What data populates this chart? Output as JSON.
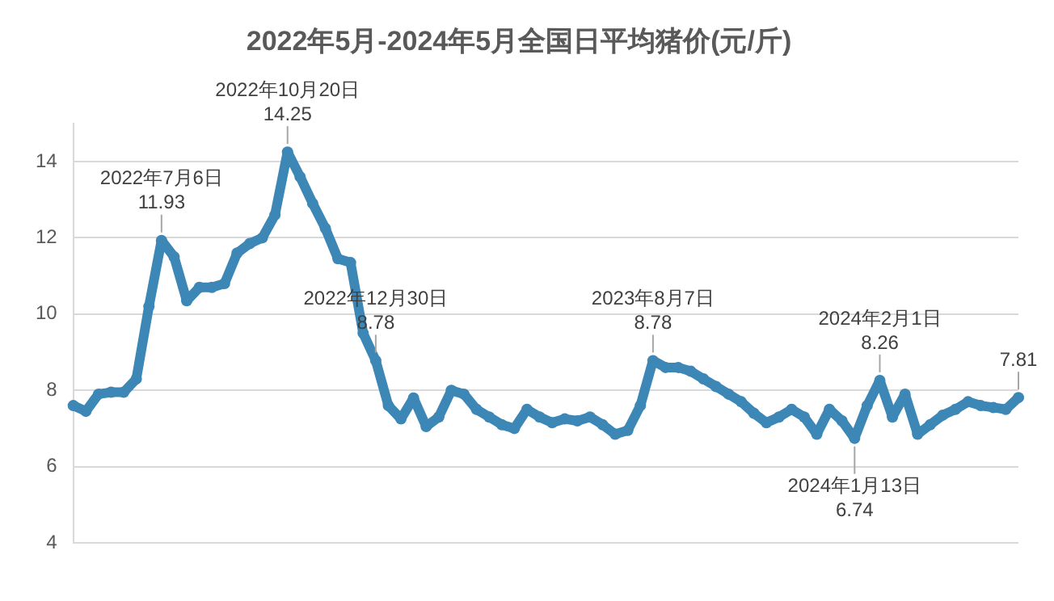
{
  "chart_data": {
    "type": "line",
    "title": "2022年5月-2024年5月全国日平均猪价(元/斤)",
    "categories": [
      null,
      null,
      null,
      null,
      null,
      null,
      null,
      null,
      null,
      null,
      null,
      null,
      null,
      null,
      null,
      null,
      null,
      null,
      null,
      null,
      null,
      null,
      null,
      null,
      null,
      null,
      null,
      null,
      null,
      null,
      null,
      null,
      null,
      null,
      null,
      null,
      null,
      null,
      null,
      null,
      null,
      null,
      null,
      null,
      null,
      null,
      null,
      null,
      null,
      null,
      null,
      null,
      null,
      null,
      null,
      null,
      null,
      null,
      null,
      null,
      null,
      null,
      null,
      null,
      null,
      null,
      null,
      null,
      null,
      null,
      null,
      null,
      null,
      null,
      null,
      null
    ],
    "values": [
      7.6,
      7.45,
      7.9,
      7.95,
      7.95,
      8.3,
      10.2,
      11.93,
      11.5,
      10.35,
      10.7,
      10.7,
      10.8,
      11.6,
      11.85,
      12.0,
      12.6,
      14.25,
      13.6,
      12.9,
      12.25,
      11.45,
      11.35,
      9.5,
      8.78,
      7.6,
      7.25,
      7.8,
      7.05,
      7.3,
      8.0,
      7.9,
      7.5,
      7.3,
      7.1,
      7.0,
      7.5,
      7.3,
      7.15,
      7.25,
      7.2,
      7.3,
      7.1,
      6.85,
      6.95,
      7.6,
      8.78,
      8.6,
      8.6,
      8.5,
      8.3,
      8.1,
      7.9,
      7.7,
      7.4,
      7.15,
      7.3,
      7.5,
      7.3,
      6.85,
      7.5,
      7.2,
      6.74,
      7.6,
      8.26,
      7.3,
      7.9,
      6.85,
      7.1,
      7.35,
      7.5,
      7.7,
      7.6,
      7.55,
      7.5,
      7.81
    ],
    "color": "#3c87b6",
    "marker": "circle",
    "ylim": [
      4,
      15
    ],
    "yticks": [
      4,
      6,
      8,
      10,
      12,
      14
    ],
    "grid": "y",
    "tick_labels": "y",
    "annotations": [
      {
        "text": "2022年7月6日\n11.93",
        "y": 11.93
      },
      {
        "text": "2022年10月20日\n14.25",
        "y": 14.25
      },
      {
        "text": "2022年12月30日\n8.78",
        "y": 8.78
      },
      {
        "text": "2023年8月7日\n8.78",
        "y": 8.78
      },
      {
        "text": "2024年1月13日\n6.74",
        "y": 6.74
      },
      {
        "text": "2024年2月1日\n8.26",
        "y": 8.26
      },
      {
        "text": "7.81",
        "y": 7.81
      }
    ]
  }
}
